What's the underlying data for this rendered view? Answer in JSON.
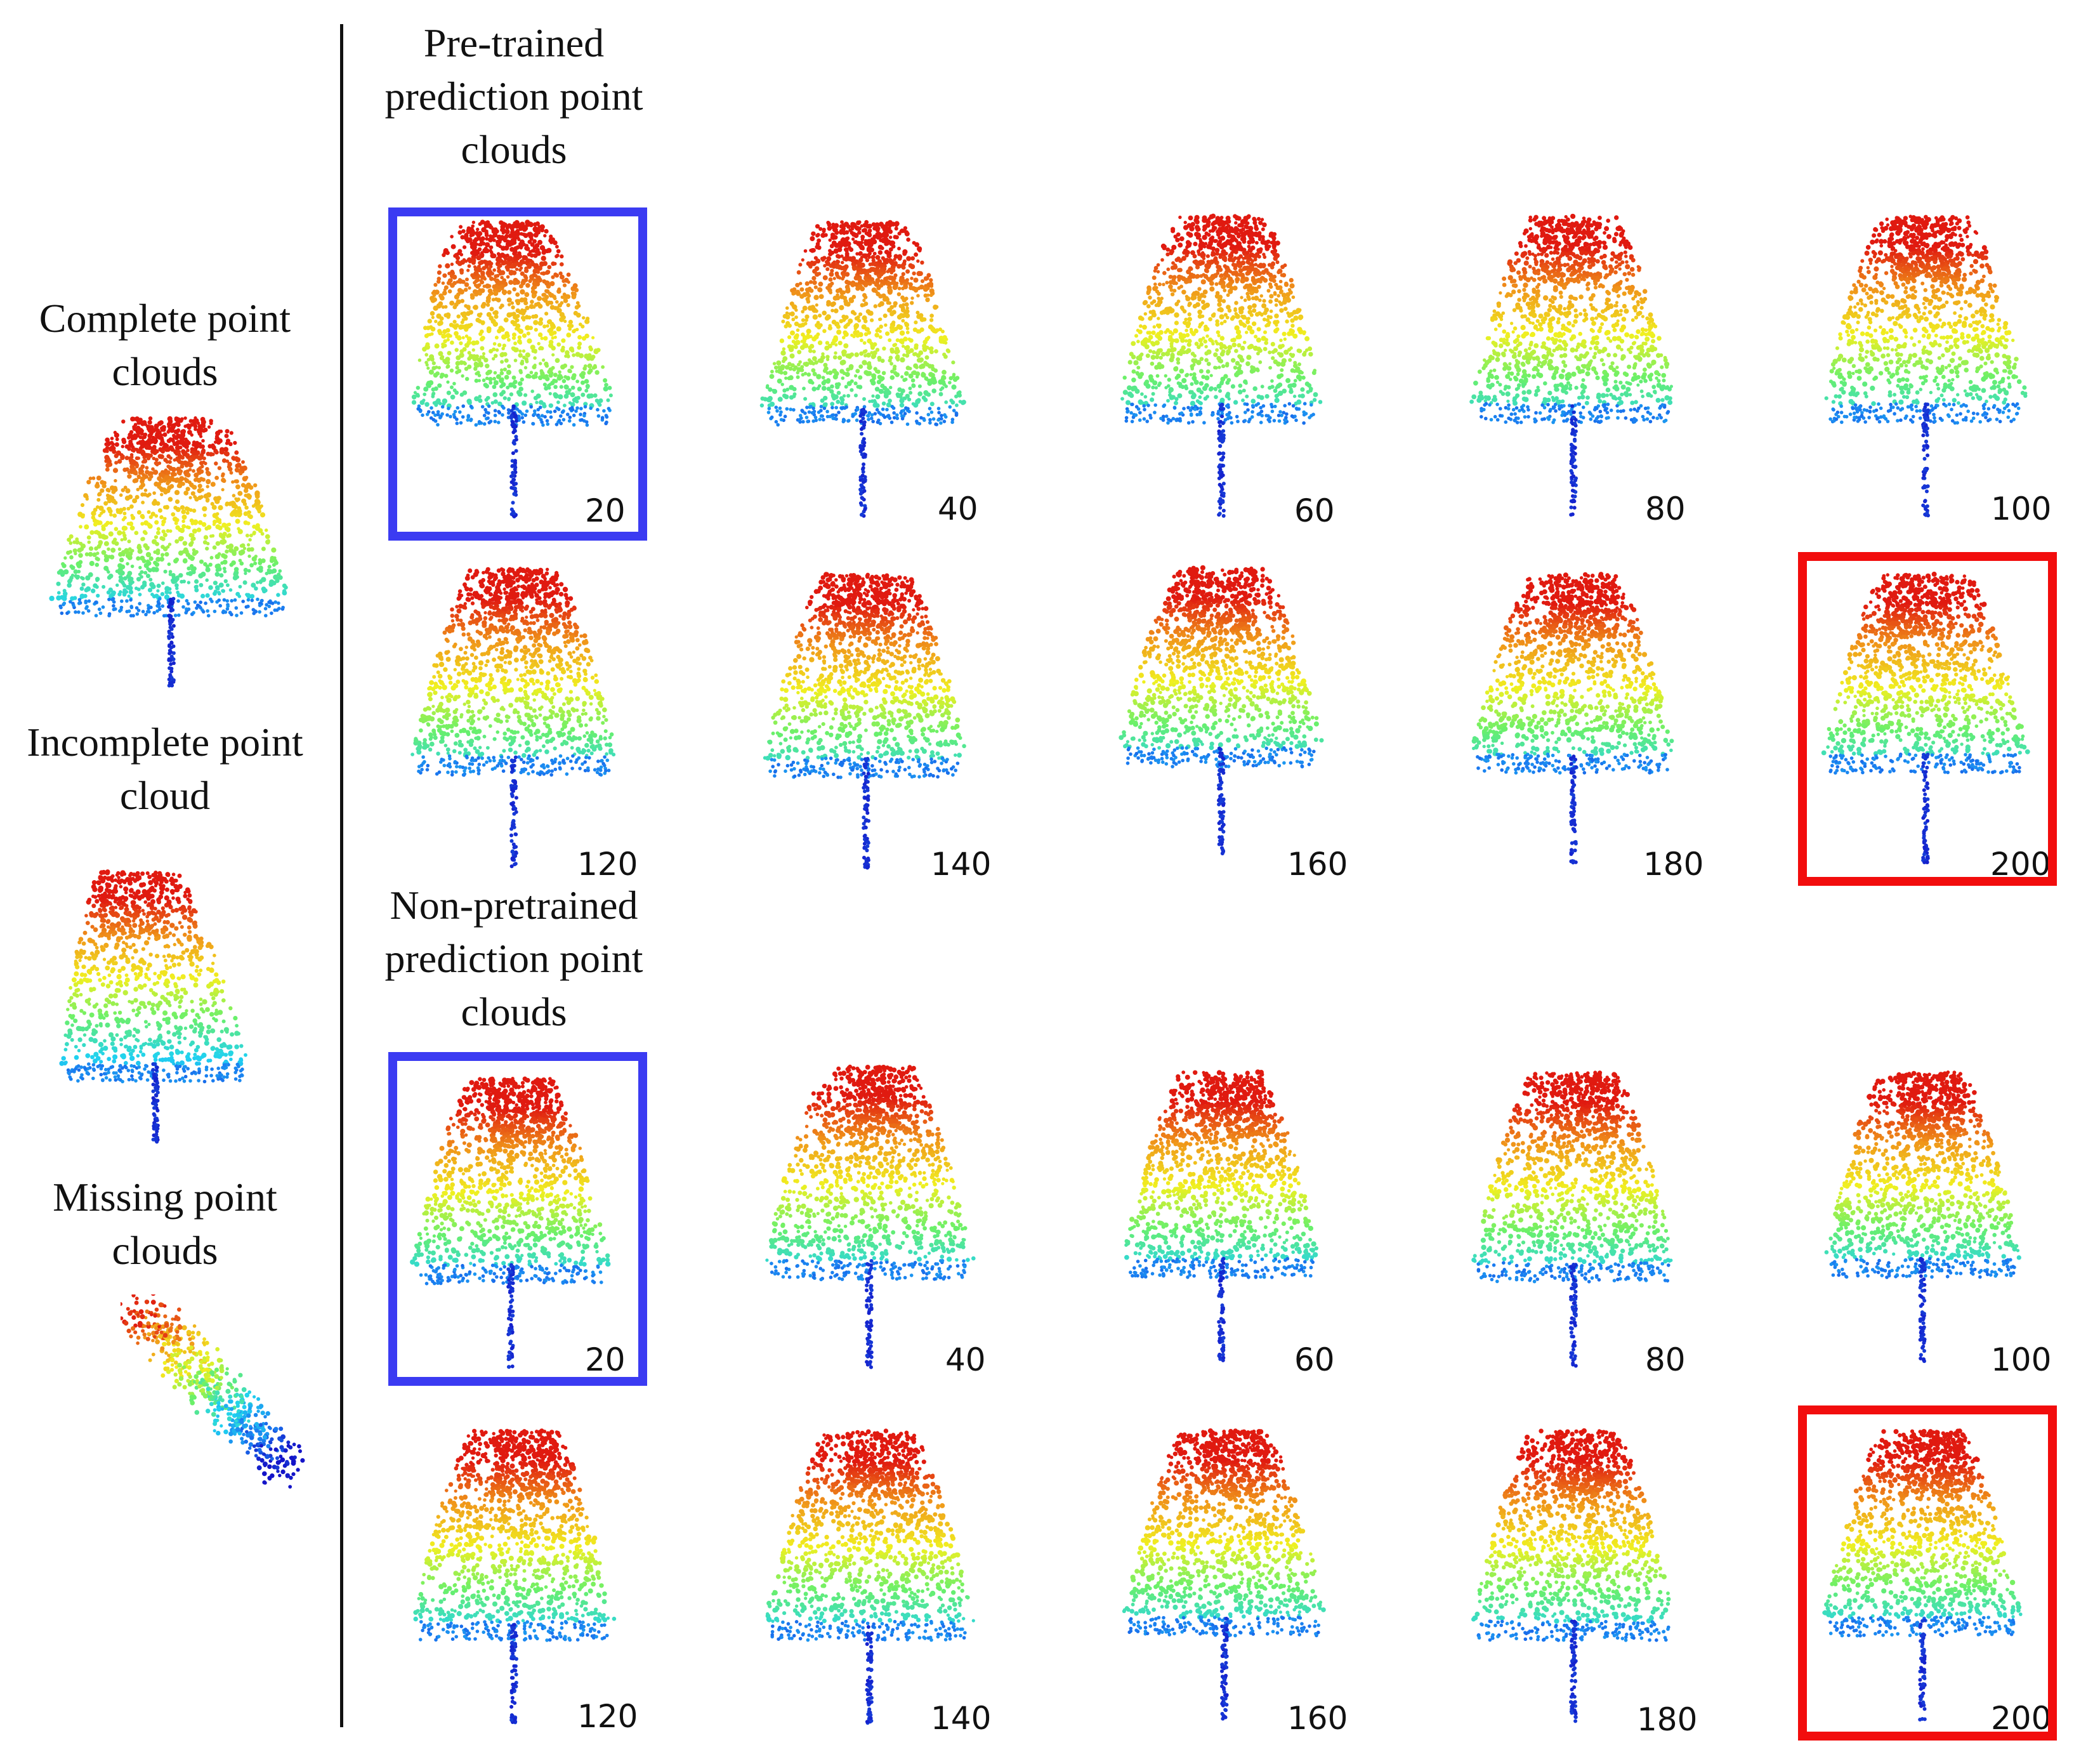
{
  "figure": {
    "left_labels": {
      "complete": "Complete point\nclouds",
      "incomplete": "Incomplete point\ncloud",
      "missing": "Missing point\nclouds"
    },
    "section_titles": {
      "pretrained": "Pre-trained\nprediction point\nclouds",
      "nonpretrained": "Non-pretrained\nprediction point\nclouds"
    },
    "pretrained_epochs": [
      "20",
      "40",
      "60",
      "80",
      "100",
      "120",
      "140",
      "160",
      "180",
      "200"
    ],
    "nonpretrained_epochs": [
      "20",
      "40",
      "60",
      "80",
      "100",
      "120",
      "140",
      "160",
      "180",
      "200"
    ],
    "highlight_colors": {
      "first": "#3b3bf2",
      "last": "#f20d0d"
    },
    "colormap": [
      "#1414c8",
      "#1a7cf0",
      "#20d2f0",
      "#6af06a",
      "#f0f020",
      "#f09a1a",
      "#e01a10"
    ]
  }
}
